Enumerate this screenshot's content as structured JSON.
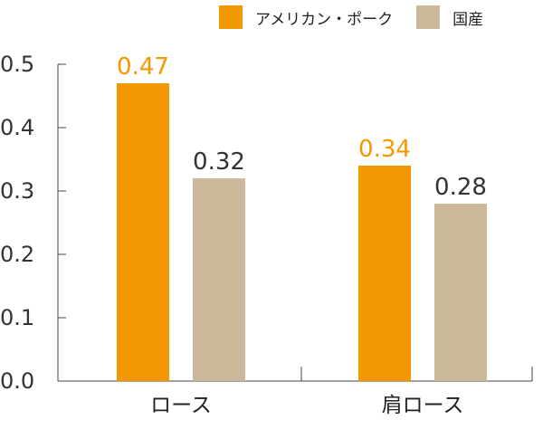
{
  "chart_data": {
    "type": "bar",
    "title": "",
    "xlabel": "",
    "ylabel": "",
    "categories": [
      "ロース",
      "肩ロース"
    ],
    "series": [
      {
        "name": "アメリカン・ポーク",
        "values": [
          0.47,
          0.34
        ],
        "color": "#F39800",
        "label_color": "#F39800"
      },
      {
        "name": "国産",
        "values": [
          0.32,
          0.28
        ],
        "color": "#CDB89B",
        "label_color": "#333333"
      }
    ],
    "ylim": [
      0,
      0.5
    ],
    "yticks": [
      "0.0",
      "0.1",
      "0.2",
      "0.3",
      "0.4",
      "0.5"
    ],
    "grid": false,
    "legend_position": "top-right"
  }
}
